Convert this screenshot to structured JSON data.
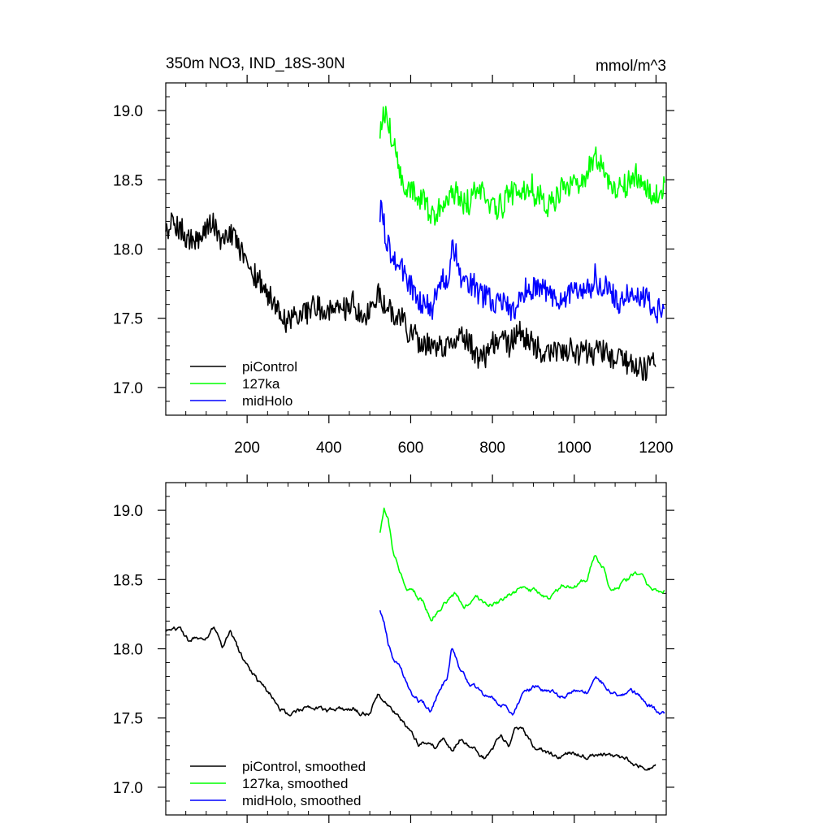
{
  "chart_data": [
    {
      "type": "line",
      "title_left": "350m NO3, IND_18S-30N",
      "title_right": "mmol/m^3",
      "xlim": [
        1,
        1225
      ],
      "ylim": [
        16.8,
        19.2
      ],
      "xticks": [
        200,
        400,
        600,
        800,
        1000,
        1200
      ],
      "xtick_labels": [
        "200",
        "400",
        "600",
        "800",
        "1000",
        "1200"
      ],
      "show_xtick_labels": true,
      "yticks": [
        17.0,
        17.5,
        18.0,
        18.5,
        19.0
      ],
      "ytick_labels": [
        "17.0",
        "17.5",
        "18.0",
        "18.5",
        "19.0"
      ],
      "legend_position": "bottom-left",
      "series": [
        {
          "name": "piControl",
          "color": "#000000",
          "style": "noisy",
          "x": [
            1,
            20,
            40,
            60,
            80,
            100,
            120,
            140,
            160,
            180,
            200,
            230,
            260,
            280,
            300,
            330,
            360,
            400,
            430,
            460,
            480,
            500,
            520,
            540,
            560,
            580,
            600,
            620,
            640,
            660,
            680,
            700,
            720,
            740,
            760,
            780,
            800,
            820,
            840,
            860,
            880,
            900,
            930,
            960,
            1000,
            1030,
            1060,
            1100,
            1130,
            1160,
            1180,
            1200
          ],
          "y": [
            18.1,
            18.2,
            18.15,
            18.05,
            18.1,
            18.12,
            18.2,
            18.05,
            18.15,
            18.0,
            17.9,
            17.75,
            17.65,
            17.58,
            17.5,
            17.55,
            17.6,
            17.55,
            17.58,
            17.6,
            17.5,
            17.55,
            17.7,
            17.6,
            17.55,
            17.48,
            17.4,
            17.3,
            17.32,
            17.28,
            17.35,
            17.3,
            17.38,
            17.32,
            17.25,
            17.18,
            17.3,
            17.4,
            17.3,
            17.42,
            17.38,
            17.3,
            17.25,
            17.22,
            17.28,
            17.22,
            17.25,
            17.22,
            17.2,
            17.15,
            17.12,
            17.15
          ]
        },
        {
          "name": "127ka",
          "color": "#00ff00",
          "style": "noisy",
          "x": [
            525,
            535,
            545,
            555,
            570,
            590,
            610,
            630,
            650,
            670,
            690,
            710,
            730,
            760,
            790,
            820,
            850,
            880,
            910,
            940,
            970,
            1000,
            1030,
            1050,
            1070,
            1090,
            1110,
            1130,
            1150,
            1170,
            1190,
            1210,
            1222
          ],
          "y": [
            18.85,
            19.0,
            18.95,
            18.75,
            18.6,
            18.45,
            18.4,
            18.35,
            18.25,
            18.3,
            18.35,
            18.4,
            18.3,
            18.4,
            18.3,
            18.35,
            18.4,
            18.45,
            18.4,
            18.35,
            18.45,
            18.45,
            18.5,
            18.65,
            18.6,
            18.4,
            18.45,
            18.5,
            18.55,
            18.5,
            18.4,
            18.4,
            18.4
          ]
        },
        {
          "name": "midHolo",
          "color": "#0000ff",
          "style": "noisy",
          "x": [
            525,
            535,
            545,
            555,
            570,
            590,
            610,
            630,
            650,
            670,
            690,
            700,
            720,
            740,
            760,
            790,
            820,
            850,
            880,
            910,
            940,
            970,
            1000,
            1030,
            1050,
            1070,
            1090,
            1110,
            1140,
            1160,
            1180,
            1200,
            1222
          ],
          "y": [
            18.28,
            18.2,
            18.05,
            17.95,
            17.9,
            17.75,
            17.65,
            17.6,
            17.55,
            17.7,
            17.8,
            18.0,
            17.85,
            17.75,
            17.7,
            17.65,
            17.6,
            17.55,
            17.7,
            17.72,
            17.7,
            17.65,
            17.7,
            17.68,
            17.8,
            17.75,
            17.7,
            17.65,
            17.7,
            17.65,
            17.6,
            17.55,
            17.55
          ]
        }
      ]
    },
    {
      "type": "line",
      "xlim": [
        1,
        1225
      ],
      "ylim": [
        16.8,
        19.2
      ],
      "xticks": [
        200,
        400,
        600,
        800,
        1000,
        1200
      ],
      "show_xtick_labels": false,
      "yticks": [
        17.0,
        17.5,
        18.0,
        18.5,
        19.0
      ],
      "ytick_labels": [
        "17.0",
        "17.5",
        "18.0",
        "18.5",
        "19.0"
      ],
      "legend_position": "bottom-left",
      "series": [
        {
          "name": "piControl, smoothed",
          "color": "#000000",
          "style": "smooth",
          "x": [
            1,
            20,
            40,
            60,
            80,
            100,
            120,
            140,
            160,
            180,
            200,
            230,
            260,
            280,
            300,
            330,
            360,
            400,
            430,
            460,
            480,
            500,
            520,
            540,
            560,
            580,
            600,
            620,
            640,
            660,
            680,
            700,
            720,
            740,
            760,
            780,
            800,
            820,
            840,
            860,
            880,
            900,
            930,
            960,
            1000,
            1030,
            1060,
            1100,
            1130,
            1160,
            1180,
            1200
          ],
          "y": [
            18.12,
            18.18,
            18.12,
            18.05,
            18.08,
            18.1,
            18.15,
            18.0,
            18.12,
            17.98,
            17.88,
            17.75,
            17.65,
            17.58,
            17.52,
            17.55,
            17.58,
            17.55,
            17.56,
            17.58,
            17.52,
            17.55,
            17.68,
            17.6,
            17.55,
            17.47,
            17.4,
            17.3,
            17.32,
            17.28,
            17.33,
            17.28,
            17.35,
            17.3,
            17.25,
            17.2,
            17.28,
            17.38,
            17.3,
            17.45,
            17.38,
            17.3,
            17.25,
            17.22,
            17.26,
            17.22,
            17.24,
            17.22,
            17.2,
            17.15,
            17.12,
            17.15
          ]
        },
        {
          "name": "127ka, smoothed",
          "color": "#00ff00",
          "style": "smooth",
          "x": [
            525,
            535,
            545,
            555,
            570,
            590,
            610,
            630,
            650,
            670,
            690,
            710,
            730,
            760,
            790,
            820,
            850,
            880,
            910,
            940,
            970,
            1000,
            1030,
            1050,
            1070,
            1090,
            1110,
            1130,
            1150,
            1170,
            1190,
            1210,
            1222
          ],
          "y": [
            18.85,
            19.0,
            18.95,
            18.75,
            18.6,
            18.45,
            18.4,
            18.35,
            18.22,
            18.3,
            18.35,
            18.4,
            18.3,
            18.4,
            18.3,
            18.35,
            18.4,
            18.45,
            18.4,
            18.35,
            18.45,
            18.45,
            18.5,
            18.68,
            18.6,
            18.4,
            18.45,
            18.5,
            18.55,
            18.5,
            18.4,
            18.4,
            18.42
          ]
        },
        {
          "name": "midHolo, smoothed",
          "color": "#0000ff",
          "style": "smooth",
          "x": [
            525,
            535,
            545,
            555,
            570,
            590,
            610,
            630,
            650,
            670,
            690,
            700,
            720,
            740,
            760,
            790,
            820,
            850,
            880,
            910,
            940,
            970,
            1000,
            1030,
            1050,
            1070,
            1090,
            1110,
            1140,
            1160,
            1180,
            1200,
            1222
          ],
          "y": [
            18.28,
            18.2,
            18.05,
            17.95,
            17.9,
            17.75,
            17.65,
            17.6,
            17.55,
            17.7,
            17.8,
            18.02,
            17.85,
            17.75,
            17.7,
            17.65,
            17.6,
            17.55,
            17.7,
            17.72,
            17.7,
            17.65,
            17.7,
            17.68,
            17.8,
            17.75,
            17.7,
            17.65,
            17.7,
            17.65,
            17.6,
            17.55,
            17.55
          ]
        }
      ]
    }
  ]
}
